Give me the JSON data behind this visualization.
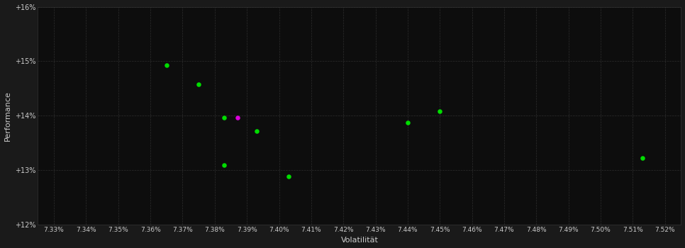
{
  "background_color": "#1a1a1a",
  "plot_bg_color": "#0d0d0d",
  "grid_color": "#2d2d2d",
  "text_color": "#cccccc",
  "xlabel": "Volatilität",
  "ylabel": "Performance",
  "xlim": [
    7.325,
    7.525
  ],
  "ylim": [
    12.0,
    16.0
  ],
  "xticks": [
    7.33,
    7.34,
    7.35,
    7.36,
    7.37,
    7.38,
    7.39,
    7.4,
    7.41,
    7.42,
    7.43,
    7.44,
    7.45,
    7.46,
    7.47,
    7.48,
    7.49,
    7.5,
    7.51,
    7.52
  ],
  "yticks": [
    12.0,
    13.0,
    14.0,
    15.0,
    16.0
  ],
  "green_points": [
    [
      7.365,
      14.93
    ],
    [
      7.375,
      14.58
    ],
    [
      7.383,
      13.97
    ],
    [
      7.393,
      13.72
    ],
    [
      7.383,
      13.1
    ],
    [
      7.403,
      12.88
    ],
    [
      7.44,
      13.88
    ],
    [
      7.45,
      14.08
    ],
    [
      7.513,
      13.22
    ]
  ],
  "magenta_point": [
    7.387,
    13.97
  ],
  "green_color": "#00dd00",
  "magenta_color": "#dd00dd",
  "marker_size": 22
}
